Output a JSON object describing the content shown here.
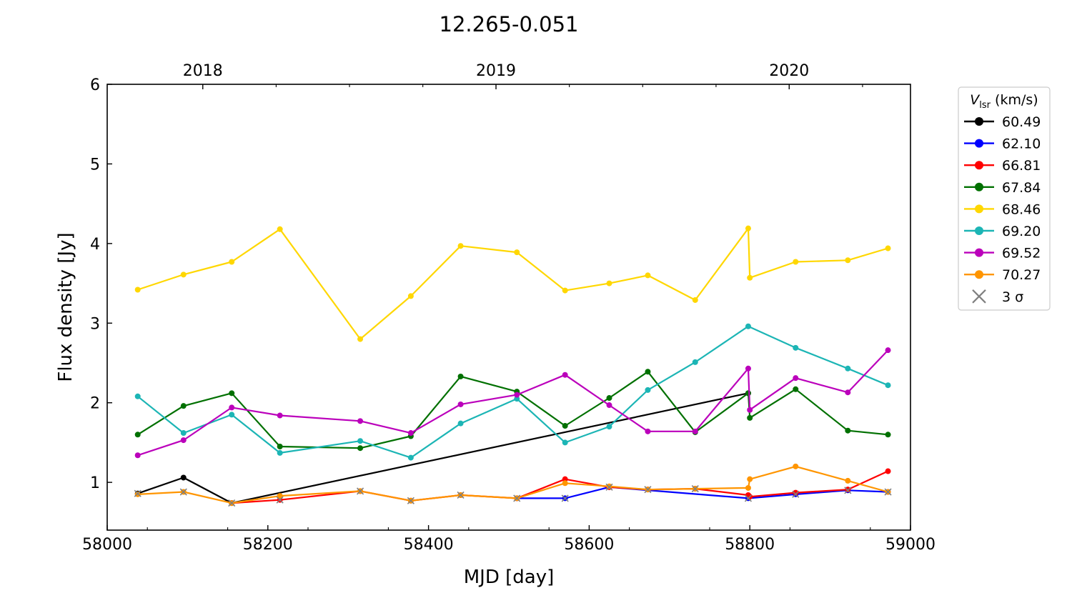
{
  "chart_data": {
    "type": "line",
    "title": "12.265-0.051",
    "xlabel": "MJD [day]",
    "ylabel": "Flux density [Jy]",
    "xlim": [
      58000,
      59000
    ],
    "ylim": [
      0.4,
      6
    ],
    "xticks": [
      58000,
      58200,
      58400,
      58600,
      58800,
      59000
    ],
    "yticks": [
      1,
      2,
      3,
      4,
      5,
      6
    ],
    "top_axis": {
      "labels": [
        {
          "text": "2018",
          "mjd": 58119
        },
        {
          "text": "2019",
          "mjd": 58484
        },
        {
          "text": "2020",
          "mjd": 58849
        }
      ]
    },
    "grid": false,
    "legend": {
      "placement": "outside-right",
      "title": "V_lsr (km/s)",
      "title_main": "V",
      "title_sub": "lsr",
      "title_rest": " (km/s)",
      "sigma_label": "3 σ",
      "sigma_color": "#7f7f7f"
    },
    "series": [
      {
        "name": "60.49",
        "color": "#000000",
        "points": [
          [
            58038,
            0.86
          ],
          [
            58095,
            1.06
          ],
          [
            58155,
            0.74
          ],
          [
            58798,
            2.12
          ]
        ]
      },
      {
        "name": "62.10",
        "color": "#0000ff",
        "points": [
          [
            58510,
            0.8
          ],
          [
            58570,
            0.8
          ],
          [
            58625,
            0.94
          ],
          [
            58798,
            0.8
          ],
          [
            58857,
            0.85
          ],
          [
            58922,
            0.9
          ],
          [
            58972,
            0.88
          ]
        ]
      },
      {
        "name": "66.81",
        "color": "#ff0000",
        "points": [
          [
            58155,
            0.74
          ],
          [
            58215,
            0.78
          ],
          [
            58315,
            0.89
          ],
          [
            58378,
            0.77
          ],
          [
            58440,
            0.84
          ],
          [
            58510,
            0.8
          ],
          [
            58570,
            1.04
          ],
          [
            58625,
            0.94
          ],
          [
            58673,
            0.91
          ],
          [
            58732,
            0.92
          ],
          [
            58798,
            0.84
          ],
          [
            58800,
            0.82
          ],
          [
            58857,
            0.87
          ],
          [
            58922,
            0.91
          ],
          [
            58972,
            1.14
          ]
        ]
      },
      {
        "name": "67.84",
        "color": "#007000",
        "points": [
          [
            58038,
            1.6
          ],
          [
            58095,
            1.96
          ],
          [
            58155,
            2.12
          ],
          [
            58215,
            1.45
          ],
          [
            58315,
            1.43
          ],
          [
            58378,
            1.58
          ],
          [
            58440,
            2.33
          ],
          [
            58510,
            2.14
          ],
          [
            58570,
            1.71
          ],
          [
            58625,
            2.06
          ],
          [
            58673,
            2.39
          ],
          [
            58732,
            1.63
          ],
          [
            58798,
            2.12
          ],
          [
            58800,
            1.81
          ],
          [
            58857,
            2.17
          ],
          [
            58922,
            1.65
          ],
          [
            58972,
            1.6
          ]
        ]
      },
      {
        "name": "68.46",
        "color": "#ffd700",
        "points": [
          [
            58038,
            3.42
          ],
          [
            58095,
            3.61
          ],
          [
            58155,
            3.77
          ],
          [
            58215,
            4.18
          ],
          [
            58315,
            2.8
          ],
          [
            58378,
            3.34
          ],
          [
            58440,
            3.97
          ],
          [
            58510,
            3.89
          ],
          [
            58570,
            3.41
          ],
          [
            58625,
            3.5
          ],
          [
            58673,
            3.6
          ],
          [
            58732,
            3.29
          ],
          [
            58798,
            4.19
          ],
          [
            58800,
            3.57
          ],
          [
            58857,
            3.77
          ],
          [
            58922,
            3.79
          ],
          [
            58972,
            3.94
          ]
        ]
      },
      {
        "name": "69.20",
        "color": "#1cb5b5",
        "points": [
          [
            58038,
            2.08
          ],
          [
            58095,
            1.62
          ],
          [
            58155,
            1.85
          ],
          [
            58215,
            1.37
          ],
          [
            58315,
            1.52
          ],
          [
            58378,
            1.31
          ],
          [
            58440,
            1.74
          ],
          [
            58510,
            2.05
          ],
          [
            58570,
            1.5
          ],
          [
            58625,
            1.7
          ],
          [
            58673,
            2.16
          ],
          [
            58732,
            2.51
          ],
          [
            58798,
            2.96
          ],
          [
            58857,
            2.69
          ],
          [
            58922,
            2.43
          ],
          [
            58972,
            2.22
          ]
        ]
      },
      {
        "name": "69.52",
        "color": "#bb00bb",
        "points": [
          [
            58038,
            1.34
          ],
          [
            58095,
            1.53
          ],
          [
            58155,
            1.94
          ],
          [
            58215,
            1.84
          ],
          [
            58315,
            1.77
          ],
          [
            58378,
            1.62
          ],
          [
            58440,
            1.98
          ],
          [
            58510,
            2.1
          ],
          [
            58570,
            2.35
          ],
          [
            58625,
            1.97
          ],
          [
            58673,
            1.64
          ],
          [
            58732,
            1.64
          ],
          [
            58798,
            2.43
          ],
          [
            58800,
            1.91
          ],
          [
            58857,
            2.31
          ],
          [
            58922,
            2.13
          ],
          [
            58972,
            2.66
          ]
        ]
      },
      {
        "name": "70.27",
        "color": "#ff9500",
        "points": [
          [
            58038,
            0.85
          ],
          [
            58095,
            0.88
          ],
          [
            58155,
            0.74
          ],
          [
            58215,
            0.83
          ],
          [
            58315,
            0.89
          ],
          [
            58378,
            0.77
          ],
          [
            58440,
            0.84
          ],
          [
            58510,
            0.8
          ],
          [
            58570,
            0.99
          ],
          [
            58625,
            0.95
          ],
          [
            58673,
            0.91
          ],
          [
            58732,
            0.92
          ],
          [
            58798,
            0.93
          ],
          [
            58800,
            1.04
          ],
          [
            58857,
            1.2
          ],
          [
            58922,
            1.02
          ],
          [
            58972,
            0.88
          ]
        ]
      }
    ],
    "sigma_markers": [
      [
        58038,
        0.86
      ],
      [
        58095,
        0.88
      ],
      [
        58155,
        0.74
      ],
      [
        58215,
        0.78
      ],
      [
        58315,
        0.89
      ],
      [
        58378,
        0.77
      ],
      [
        58440,
        0.84
      ],
      [
        58510,
        0.8
      ],
      [
        58570,
        0.8
      ],
      [
        58625,
        0.94
      ],
      [
        58673,
        0.91
      ],
      [
        58732,
        0.92
      ],
      [
        58798,
        0.8
      ],
      [
        58857,
        0.85
      ],
      [
        58922,
        0.9
      ],
      [
        58972,
        0.88
      ]
    ]
  }
}
